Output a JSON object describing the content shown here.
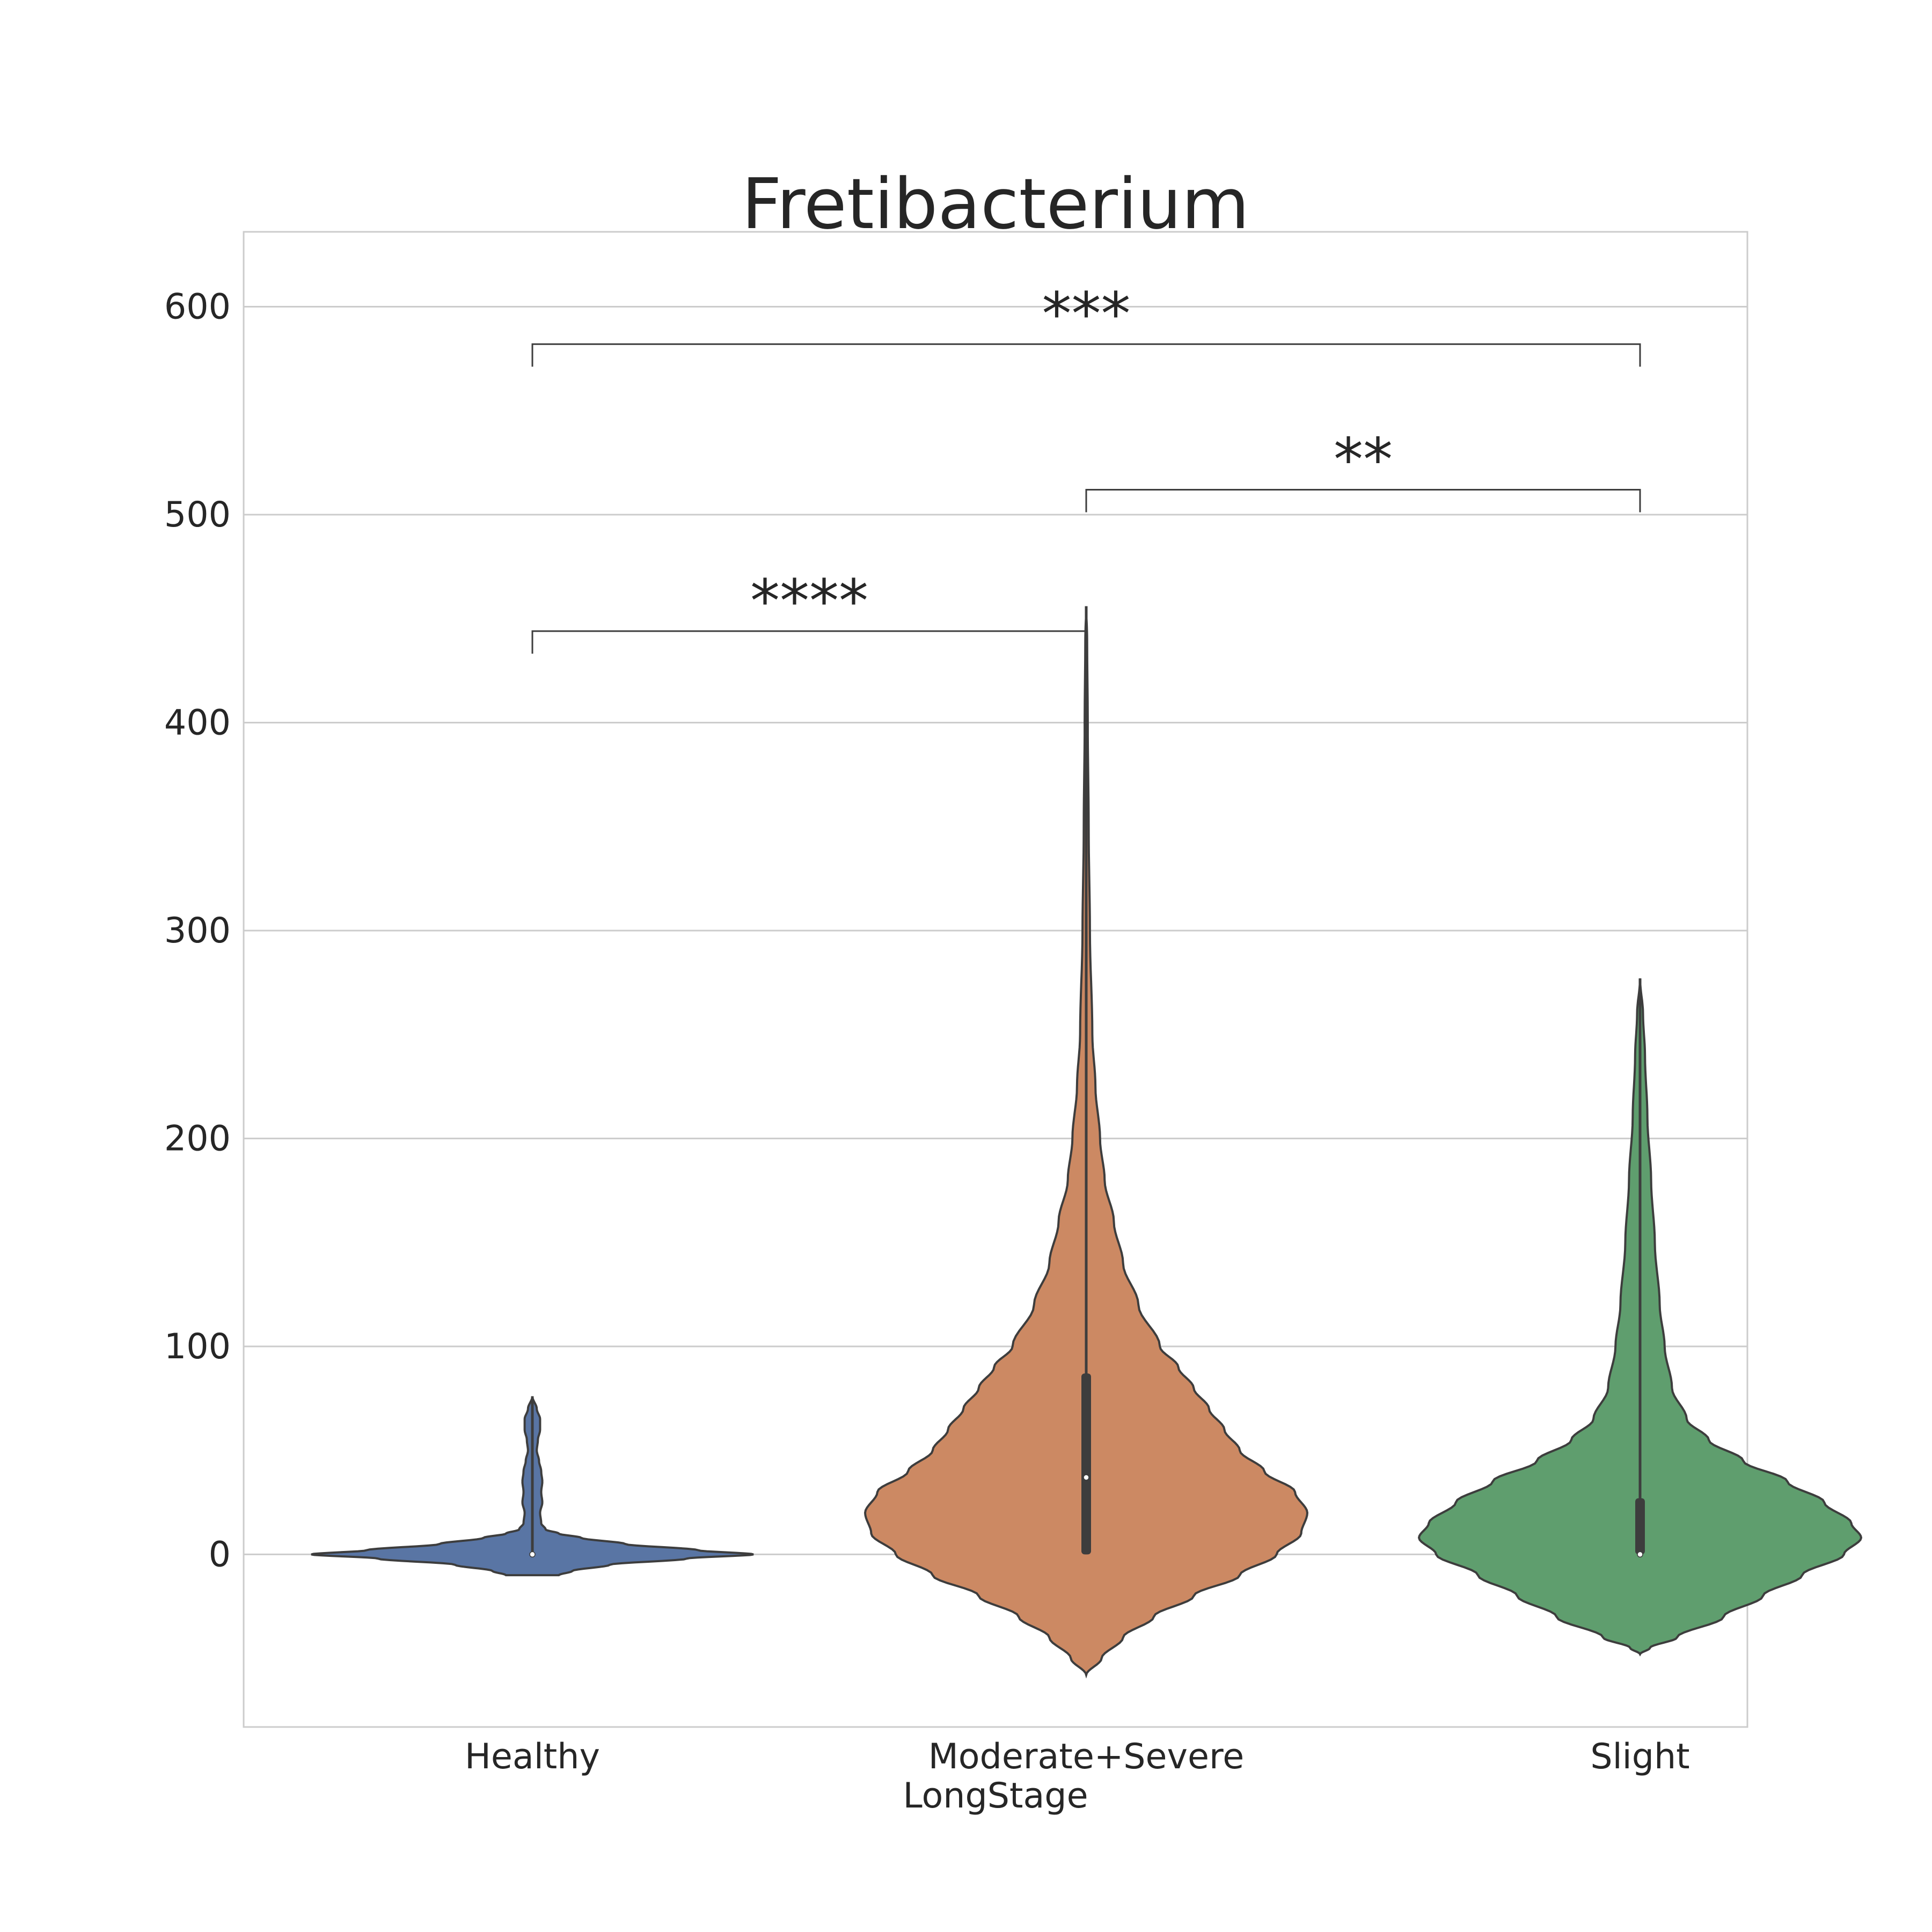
{
  "chart_data": {
    "type": "violin",
    "title": "Fretibacterium",
    "xlabel": "LongStage",
    "ylabel": "",
    "ylim": [
      -83,
      636
    ],
    "yticks": [
      0,
      100,
      200,
      300,
      400,
      500,
      600
    ],
    "grid": true,
    "categories": [
      "Healthy",
      "Moderate+Severe",
      "Slight"
    ],
    "series": [
      {
        "category": "Healthy",
        "color": "#5975a4",
        "min": 0,
        "q1": 0,
        "median": 0,
        "q3": 0,
        "max": 76,
        "kde_range": [
          -10,
          76
        ],
        "density_profile": [
          [
            -10,
            0.12
          ],
          [
            -8,
            0.18
          ],
          [
            -5,
            0.35
          ],
          [
            -2,
            0.7
          ],
          [
            0,
            1.0
          ],
          [
            2,
            0.75
          ],
          [
            5,
            0.42
          ],
          [
            8,
            0.22
          ],
          [
            10,
            0.12
          ],
          [
            12,
            0.06
          ],
          [
            15,
            0.04
          ],
          [
            20,
            0.035
          ],
          [
            25,
            0.045
          ],
          [
            30,
            0.04
          ],
          [
            35,
            0.045
          ],
          [
            40,
            0.04
          ],
          [
            45,
            0.03
          ],
          [
            50,
            0.02
          ],
          [
            55,
            0.025
          ],
          [
            60,
            0.035
          ],
          [
            65,
            0.035
          ],
          [
            70,
            0.02
          ],
          [
            76,
            0.0
          ]
        ]
      },
      {
        "category": "Moderate+Severe",
        "color": "#cc8963",
        "min": 0,
        "q1": 0,
        "median": 37,
        "q3": 87,
        "max": 456,
        "kde_range": [
          -58,
          456
        ],
        "density_profile": [
          [
            -58,
            0.0
          ],
          [
            -50,
            0.05
          ],
          [
            -40,
            0.12
          ],
          [
            -30,
            0.22
          ],
          [
            -20,
            0.35
          ],
          [
            -10,
            0.5
          ],
          [
            0,
            0.62
          ],
          [
            10,
            0.7
          ],
          [
            20,
            0.72
          ],
          [
            30,
            0.68
          ],
          [
            40,
            0.58
          ],
          [
            50,
            0.5
          ],
          [
            60,
            0.45
          ],
          [
            70,
            0.4
          ],
          [
            80,
            0.35
          ],
          [
            90,
            0.3
          ],
          [
            100,
            0.24
          ],
          [
            120,
            0.17
          ],
          [
            140,
            0.12
          ],
          [
            160,
            0.09
          ],
          [
            180,
            0.06
          ],
          [
            200,
            0.045
          ],
          [
            225,
            0.03
          ],
          [
            250,
            0.02
          ],
          [
            300,
            0.012
          ],
          [
            350,
            0.008
          ],
          [
            400,
            0.005
          ],
          [
            440,
            0.003
          ],
          [
            456,
            0.0
          ]
        ]
      },
      {
        "category": "Slight",
        "color": "#5f9e6e",
        "min": 0,
        "q1": 0,
        "median": 0,
        "q3": 27,
        "max": 277,
        "kde_range": [
          -48,
          277
        ],
        "density_profile": [
          [
            -48,
            0.0
          ],
          [
            -45,
            0.04
          ],
          [
            -40,
            0.15
          ],
          [
            -30,
            0.34
          ],
          [
            -20,
            0.5
          ],
          [
            -10,
            0.66
          ],
          [
            0,
            0.83
          ],
          [
            8,
            0.9
          ],
          [
            15,
            0.86
          ],
          [
            25,
            0.75
          ],
          [
            35,
            0.6
          ],
          [
            45,
            0.42
          ],
          [
            55,
            0.28
          ],
          [
            65,
            0.19
          ],
          [
            80,
            0.13
          ],
          [
            100,
            0.1
          ],
          [
            120,
            0.08
          ],
          [
            150,
            0.06
          ],
          [
            180,
            0.045
          ],
          [
            210,
            0.03
          ],
          [
            240,
            0.02
          ],
          [
            260,
            0.012
          ],
          [
            277,
            0.0
          ]
        ]
      }
    ],
    "annotations": [
      {
        "from": "Healthy",
        "to": "Moderate+Severe",
        "y": 444,
        "label": "****"
      },
      {
        "from": "Moderate+Severe",
        "to": "Slight",
        "y": 512,
        "label": "**"
      },
      {
        "from": "Healthy",
        "to": "Slight",
        "y": 582,
        "label": "***"
      }
    ]
  }
}
